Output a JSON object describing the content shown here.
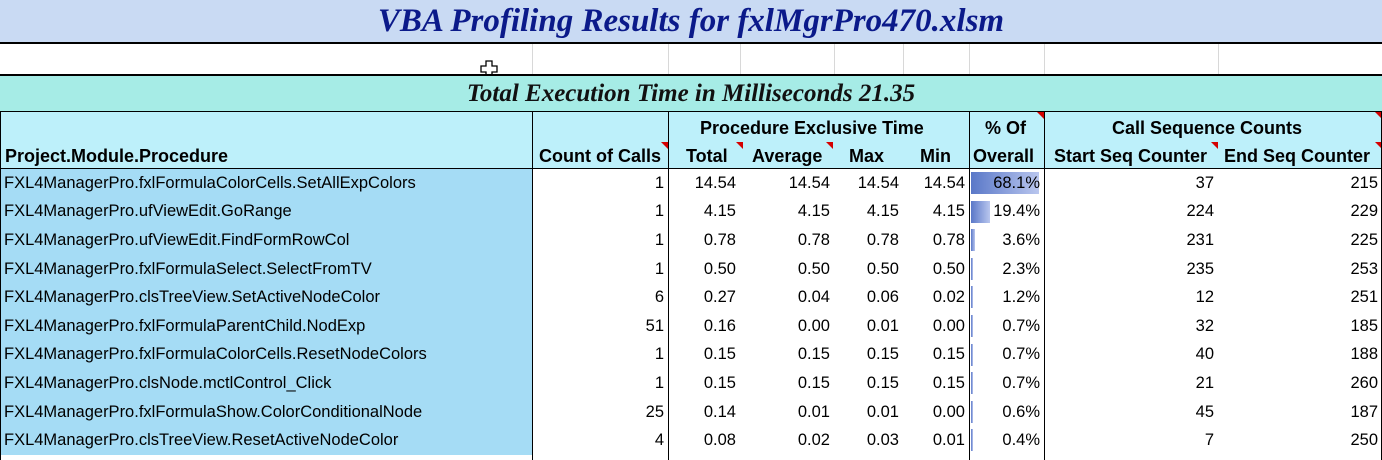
{
  "title": "VBA Profiling Results for fxlMgrPro470.xlsm",
  "total_execution": "Total Execution Time in Milliseconds 21.35",
  "headers": {
    "procedure": "Project.Module.Procedure",
    "count_of_calls": "Count of Calls",
    "exclusive_group": "Procedure Exclusive Time",
    "total": "Total",
    "average": "Average",
    "max": "Max",
    "min": "Min",
    "pct_line1": "% Of",
    "pct_line2": "Overall",
    "call_seq_group": "Call Sequence Counts",
    "start_seq": "Start Seq Counter",
    "end_seq": "End Seq Counter"
  },
  "rows": [
    {
      "name": "FXL4ManagerPro.fxlFormulaColorCells.SetAllExpColors",
      "calls": "1",
      "total": "14.54",
      "average": "14.54",
      "max": "14.54",
      "min": "14.54",
      "pct": "68.1%",
      "pct_value": 0.681,
      "start": "37",
      "end": "215"
    },
    {
      "name": "FXL4ManagerPro.ufViewEdit.GoRange",
      "calls": "1",
      "total": "4.15",
      "average": "4.15",
      "max": "4.15",
      "min": "4.15",
      "pct": "19.4%",
      "pct_value": 0.194,
      "start": "224",
      "end": "229"
    },
    {
      "name": "FXL4ManagerPro.ufViewEdit.FindFormRowCol",
      "calls": "1",
      "total": "0.78",
      "average": "0.78",
      "max": "0.78",
      "min": "0.78",
      "pct": "3.6%",
      "pct_value": 0.036,
      "start": "231",
      "end": "225"
    },
    {
      "name": "FXL4ManagerPro.fxlFormulaSelect.SelectFromTV",
      "calls": "1",
      "total": "0.50",
      "average": "0.50",
      "max": "0.50",
      "min": "0.50",
      "pct": "2.3%",
      "pct_value": 0.023,
      "start": "235",
      "end": "253"
    },
    {
      "name": "FXL4ManagerPro.clsTreeView.SetActiveNodeColor",
      "calls": "6",
      "total": "0.27",
      "average": "0.04",
      "max": "0.06",
      "min": "0.02",
      "pct": "1.2%",
      "pct_value": 0.012,
      "start": "12",
      "end": "251"
    },
    {
      "name": "FXL4ManagerPro.fxlFormulaParentChild.NodExp",
      "calls": "51",
      "total": "0.16",
      "average": "0.00",
      "max": "0.01",
      "min": "0.00",
      "pct": "0.7%",
      "pct_value": 0.007,
      "start": "32",
      "end": "185"
    },
    {
      "name": "FXL4ManagerPro.fxlFormulaColorCells.ResetNodeColors",
      "calls": "1",
      "total": "0.15",
      "average": "0.15",
      "max": "0.15",
      "min": "0.15",
      "pct": "0.7%",
      "pct_value": 0.007,
      "start": "40",
      "end": "188"
    },
    {
      "name": "FXL4ManagerPro.clsNode.mctlControl_Click",
      "calls": "1",
      "total": "0.15",
      "average": "0.15",
      "max": "0.15",
      "min": "0.15",
      "pct": "0.7%",
      "pct_value": 0.007,
      "start": "21",
      "end": "260"
    },
    {
      "name": "FXL4ManagerPro.fxlFormulaShow.ColorConditionalNode",
      "calls": "25",
      "total": "0.14",
      "average": "0.01",
      "max": "0.01",
      "min": "0.00",
      "pct": "0.6%",
      "pct_value": 0.006,
      "start": "45",
      "end": "187"
    },
    {
      "name": "FXL4ManagerPro.clsTreeView.ResetActiveNodeColor",
      "calls": "4",
      "total": "0.08",
      "average": "0.02",
      "max": "0.03",
      "min": "0.01",
      "pct": "0.4%",
      "pct_value": 0.004,
      "start": "7",
      "end": "250"
    }
  ],
  "colors": {
    "title_bg": "#c9daf3",
    "title_text": "#0b1a8a",
    "total_bg": "#a6ece6",
    "header_bg": "#bdf0fa",
    "name_col_bg": "#a5dcf5",
    "bar": "#5a78c8",
    "comment_marker": "#d40000"
  }
}
